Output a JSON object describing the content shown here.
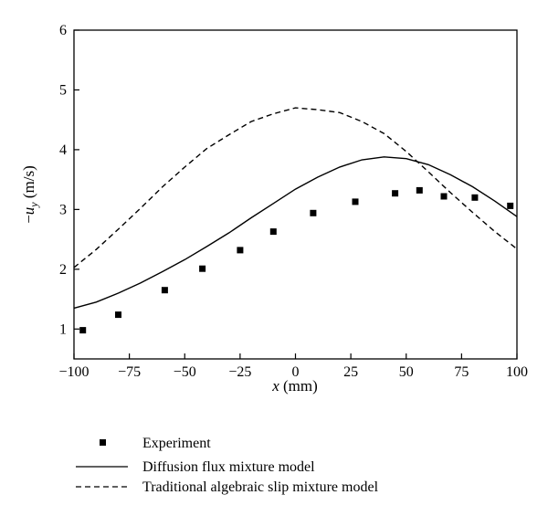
{
  "chart_data": {
    "type": "line",
    "title": "",
    "xlabel": {
      "var": "x",
      "unit": " (mm)"
    },
    "ylabel": {
      "prefix": "−",
      "var": "u",
      "sub": "y",
      "unit": " (m/s)"
    },
    "xlim": [
      -100,
      100
    ],
    "ylim": [
      0.5,
      6
    ],
    "xticks": [
      -100,
      -75,
      -50,
      -25,
      0,
      25,
      50,
      75,
      100
    ],
    "xtick_labels": [
      "−100",
      "−75",
      "−50",
      "−25",
      "0",
      "25",
      "50",
      "75",
      "100"
    ],
    "yticks": [
      1,
      2,
      3,
      4,
      5,
      6
    ],
    "ytick_labels": [
      "1",
      "2",
      "3",
      "4",
      "5",
      "6"
    ],
    "grid": false,
    "legend_position": "bottom-left",
    "series": [
      {
        "name": "Experiment",
        "kind": "scatter",
        "marker": "square",
        "color": "#000000",
        "points": [
          [
            -96,
            0.98
          ],
          [
            -80,
            1.24
          ],
          [
            -59,
            1.65
          ],
          [
            -42,
            2.01
          ],
          [
            -25,
            2.32
          ],
          [
            -10,
            2.63
          ],
          [
            8,
            2.94
          ],
          [
            27,
            3.13
          ],
          [
            45,
            3.27
          ],
          [
            56,
            3.32
          ],
          [
            67,
            3.22
          ],
          [
            81,
            3.2
          ],
          [
            97,
            3.06
          ]
        ]
      },
      {
        "name": "Diffusion flux mixture model",
        "kind": "line",
        "dash": "solid",
        "color": "#000000",
        "points": [
          [
            -100,
            1.35
          ],
          [
            -90,
            1.45
          ],
          [
            -80,
            1.6
          ],
          [
            -70,
            1.77
          ],
          [
            -60,
            1.96
          ],
          [
            -50,
            2.16
          ],
          [
            -40,
            2.38
          ],
          [
            -30,
            2.61
          ],
          [
            -20,
            2.86
          ],
          [
            -10,
            3.1
          ],
          [
            0,
            3.34
          ],
          [
            10,
            3.54
          ],
          [
            20,
            3.71
          ],
          [
            30,
            3.83
          ],
          [
            40,
            3.88
          ],
          [
            50,
            3.85
          ],
          [
            60,
            3.75
          ],
          [
            70,
            3.58
          ],
          [
            80,
            3.38
          ],
          [
            90,
            3.14
          ],
          [
            100,
            2.88
          ]
        ]
      },
      {
        "name": "Traditional algebraic slip mixture model",
        "kind": "line",
        "dash": "dashed",
        "color": "#000000",
        "points": [
          [
            -100,
            2.03
          ],
          [
            -90,
            2.33
          ],
          [
            -80,
            2.67
          ],
          [
            -70,
            3.02
          ],
          [
            -60,
            3.38
          ],
          [
            -50,
            3.71
          ],
          [
            -40,
            4.02
          ],
          [
            -30,
            4.25
          ],
          [
            -20,
            4.47
          ],
          [
            -10,
            4.6
          ],
          [
            0,
            4.7
          ],
          [
            10,
            4.67
          ],
          [
            20,
            4.62
          ],
          [
            30,
            4.47
          ],
          [
            40,
            4.27
          ],
          [
            50,
            3.97
          ],
          [
            60,
            3.63
          ],
          [
            70,
            3.28
          ],
          [
            80,
            2.95
          ],
          [
            90,
            2.63
          ],
          [
            100,
            2.34
          ]
        ]
      }
    ]
  }
}
